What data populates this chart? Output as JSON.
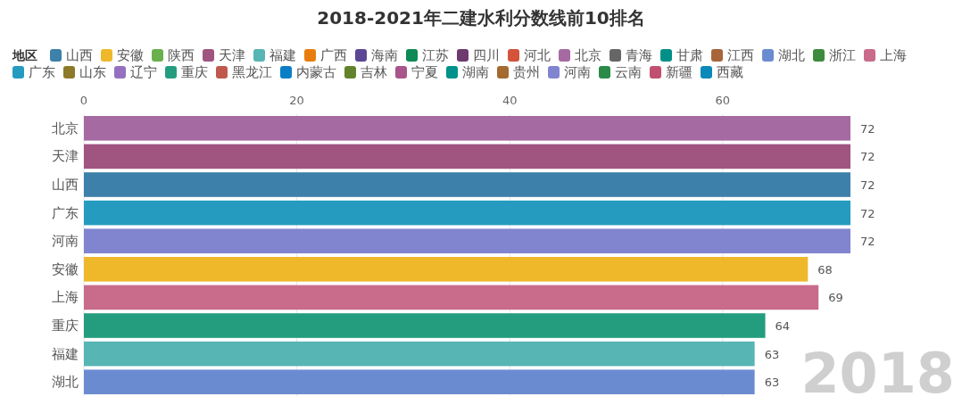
{
  "chart_data": {
    "type": "bar",
    "orientation": "horizontal",
    "title": "2018-2021年二建水利分数线前10排名",
    "legend_title": "地区",
    "legend": "top",
    "grid": "x",
    "data_labels": true,
    "categories": [
      "北京",
      "天津",
      "山西",
      "广东",
      "河南",
      "安徽",
      "上海",
      "重庆",
      "福建",
      "湖北"
    ],
    "xlim": [
      0,
      72
    ],
    "xticks": [
      0,
      20,
      40,
      60
    ],
    "annotations": [
      "2018"
    ],
    "series": [
      {
        "name": "山西",
        "color": "#3d80a9",
        "values": [
          null,
          null,
          72,
          null,
          null,
          null,
          null,
          null,
          null,
          null
        ]
      },
      {
        "name": "安徽",
        "color": "#efb82a",
        "values": [
          null,
          null,
          null,
          null,
          null,
          68,
          null,
          null,
          null,
          null
        ]
      },
      {
        "name": "陕西",
        "color": "#6ab04c",
        "values": [
          null,
          null,
          null,
          null,
          null,
          null,
          null,
          null,
          null,
          null
        ]
      },
      {
        "name": "天津",
        "color": "#a05480",
        "values": [
          null,
          72,
          null,
          null,
          null,
          null,
          null,
          null,
          null,
          null
        ]
      },
      {
        "name": "福建",
        "color": "#57b5b3",
        "values": [
          null,
          null,
          null,
          null,
          null,
          null,
          null,
          null,
          63,
          null
        ]
      },
      {
        "name": "广西",
        "color": "#e87d0d",
        "values": [
          null,
          null,
          null,
          null,
          null,
          null,
          null,
          null,
          null,
          null
        ]
      },
      {
        "name": "海南",
        "color": "#5c4696",
        "values": [
          null,
          null,
          null,
          null,
          null,
          null,
          null,
          null,
          null,
          null
        ]
      },
      {
        "name": "江苏",
        "color": "#0d8a55",
        "values": [
          null,
          null,
          null,
          null,
          null,
          null,
          null,
          null,
          null,
          null
        ]
      },
      {
        "name": "四川",
        "color": "#6e3b6e",
        "values": [
          null,
          null,
          null,
          null,
          null,
          null,
          null,
          null,
          null,
          null
        ]
      },
      {
        "name": "河北",
        "color": "#d4533b",
        "values": [
          null,
          null,
          null,
          null,
          null,
          null,
          null,
          null,
          null,
          null
        ]
      },
      {
        "name": "北京",
        "color": "#a66aa2",
        "values": [
          72,
          null,
          null,
          null,
          null,
          null,
          null,
          null,
          null,
          null
        ]
      },
      {
        "name": "青海",
        "color": "#666666",
        "values": [
          null,
          null,
          null,
          null,
          null,
          null,
          null,
          null,
          null,
          null
        ]
      },
      {
        "name": "甘肃",
        "color": "#009088",
        "values": [
          null,
          null,
          null,
          null,
          null,
          null,
          null,
          null,
          null,
          null
        ]
      },
      {
        "name": "江西",
        "color": "#a8653a",
        "values": [
          null,
          null,
          null,
          null,
          null,
          null,
          null,
          null,
          null,
          null
        ]
      },
      {
        "name": "湖北",
        "color": "#6b8bd1",
        "values": [
          null,
          null,
          null,
          null,
          null,
          null,
          null,
          null,
          null,
          63
        ]
      },
      {
        "name": "浙江",
        "color": "#3d8b3d",
        "values": [
          null,
          null,
          null,
          null,
          null,
          null,
          null,
          null,
          null,
          null
        ]
      },
      {
        "name": "上海",
        "color": "#c96b8a",
        "values": [
          null,
          null,
          null,
          null,
          null,
          null,
          69,
          null,
          null,
          null
        ]
      },
      {
        "name": "广东",
        "color": "#249bbf",
        "values": [
          null,
          null,
          null,
          72,
          null,
          null,
          null,
          null,
          null,
          null
        ]
      },
      {
        "name": "山东",
        "color": "#8c7a2a",
        "values": [
          null,
          null,
          null,
          null,
          null,
          null,
          null,
          null,
          null,
          null
        ]
      },
      {
        "name": "辽宁",
        "color": "#9670c0",
        "values": [
          null,
          null,
          null,
          null,
          null,
          null,
          null,
          null,
          null,
          null
        ]
      },
      {
        "name": "重庆",
        "color": "#239d7e",
        "values": [
          null,
          null,
          null,
          null,
          null,
          null,
          null,
          64,
          null,
          null
        ]
      },
      {
        "name": "黑龙江",
        "color": "#c0584d",
        "values": [
          null,
          null,
          null,
          null,
          null,
          null,
          null,
          null,
          null,
          null
        ]
      },
      {
        "name": "内蒙古",
        "color": "#0a7fc8",
        "values": [
          null,
          null,
          null,
          null,
          null,
          null,
          null,
          null,
          null,
          null
        ]
      },
      {
        "name": "吉林",
        "color": "#62832c",
        "values": [
          null,
          null,
          null,
          null,
          null,
          null,
          null,
          null,
          null,
          null
        ]
      },
      {
        "name": "宁夏",
        "color": "#a8558c",
        "values": [
          null,
          null,
          null,
          null,
          null,
          null,
          null,
          null,
          null,
          null
        ]
      },
      {
        "name": "湖南",
        "color": "#00918a",
        "values": [
          null,
          null,
          null,
          null,
          null,
          null,
          null,
          null,
          null,
          null
        ]
      },
      {
        "name": "贵州",
        "color": "#a46a30",
        "values": [
          null,
          null,
          null,
          null,
          null,
          null,
          null,
          null,
          null,
          null
        ]
      },
      {
        "name": "河南",
        "color": "#8185cf",
        "values": [
          null,
          null,
          null,
          null,
          72,
          null,
          null,
          null,
          null,
          null
        ]
      },
      {
        "name": "云南",
        "color": "#2a8a4a",
        "values": [
          null,
          null,
          null,
          null,
          null,
          null,
          null,
          null,
          null,
          null
        ]
      },
      {
        "name": "新疆",
        "color": "#c04f70",
        "values": [
          null,
          null,
          null,
          null,
          null,
          null,
          null,
          null,
          null,
          null
        ]
      },
      {
        "name": "西藏",
        "color": "#0b89b8",
        "values": [
          null,
          null,
          null,
          null,
          null,
          null,
          null,
          null,
          null,
          null
        ]
      }
    ]
  }
}
